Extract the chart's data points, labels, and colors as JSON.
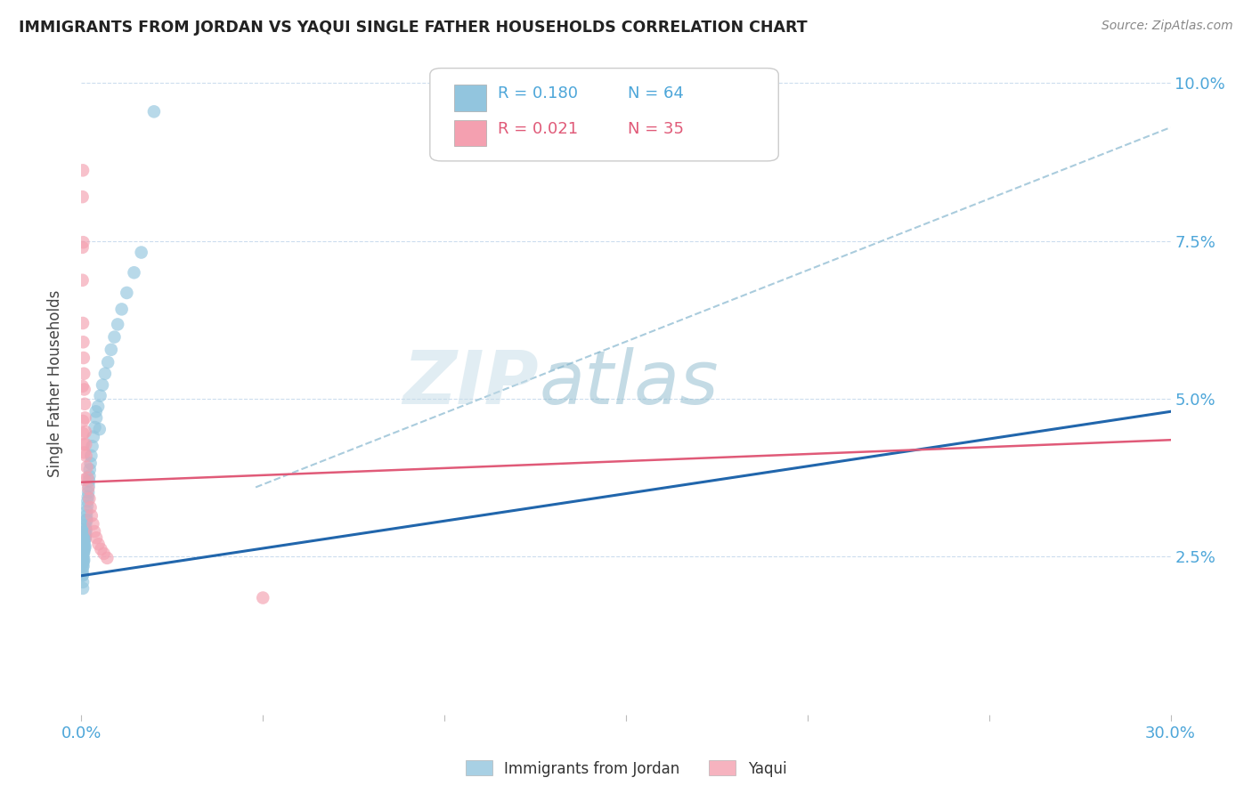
{
  "title": "IMMIGRANTS FROM JORDAN VS YAQUI SINGLE FATHER HOUSEHOLDS CORRELATION CHART",
  "source": "Source: ZipAtlas.com",
  "ylabel": "Single Father Households",
  "xlim": [
    0.0,
    0.3
  ],
  "ylim": [
    0.0,
    0.105
  ],
  "color_blue": "#92c5de",
  "color_pink": "#f4a0b0",
  "line_color_blue": "#2166ac",
  "line_color_pink": "#e05a78",
  "line_color_dashed": "#aaccdd",
  "background_color": "#ffffff",
  "watermark_zip": "ZIP",
  "watermark_atlas": "atlas",
  "jordan_x": [
    0.0003,
    0.0003,
    0.0003,
    0.0003,
    0.0003,
    0.0004,
    0.0004,
    0.0004,
    0.0004,
    0.0004,
    0.0005,
    0.0005,
    0.0005,
    0.0006,
    0.0006,
    0.0006,
    0.0007,
    0.0007,
    0.0007,
    0.0008,
    0.0008,
    0.0009,
    0.0009,
    0.001,
    0.001,
    0.001,
    0.0011,
    0.0011,
    0.0012,
    0.0012,
    0.0013,
    0.0013,
    0.0014,
    0.0015,
    0.0015,
    0.0016,
    0.0017,
    0.0018,
    0.0019,
    0.002,
    0.0021,
    0.0022,
    0.0023,
    0.0025,
    0.0027,
    0.003,
    0.0033,
    0.0037,
    0.0041,
    0.0046,
    0.0052,
    0.0058,
    0.0065,
    0.0073,
    0.0082,
    0.0091,
    0.01,
    0.0111,
    0.0125,
    0.0145,
    0.0165,
    0.02,
    0.004,
    0.005
  ],
  "jordan_y": [
    0.027,
    0.0255,
    0.024,
    0.0228,
    0.022,
    0.0245,
    0.0235,
    0.0222,
    0.021,
    0.02,
    0.026,
    0.0248,
    0.0235,
    0.0268,
    0.0255,
    0.0242,
    0.0272,
    0.0258,
    0.0245,
    0.0278,
    0.0262,
    0.0282,
    0.0268,
    0.029,
    0.0278,
    0.0265,
    0.0295,
    0.028,
    0.03,
    0.0285,
    0.0308,
    0.0292,
    0.0315,
    0.0322,
    0.0308,
    0.033,
    0.0338,
    0.0345,
    0.0352,
    0.0362,
    0.037,
    0.0378,
    0.0388,
    0.0398,
    0.041,
    0.0425,
    0.044,
    0.0455,
    0.047,
    0.0488,
    0.0505,
    0.0522,
    0.054,
    0.0558,
    0.0578,
    0.0598,
    0.0618,
    0.0642,
    0.0668,
    0.07,
    0.0732,
    0.0955,
    0.048,
    0.0452
  ],
  "yaqui_x": [
    0.0003,
    0.0003,
    0.0003,
    0.0004,
    0.0004,
    0.0005,
    0.0005,
    0.0006,
    0.0006,
    0.0007,
    0.0008,
    0.0008,
    0.0009,
    0.001,
    0.0011,
    0.0012,
    0.0013,
    0.0015,
    0.0017,
    0.0019,
    0.0022,
    0.0025,
    0.0028,
    0.0032,
    0.0036,
    0.0041,
    0.0047,
    0.0054,
    0.0062,
    0.0071,
    0.0003,
    0.0004,
    0.0005,
    0.0008,
    0.05
  ],
  "yaqui_y": [
    0.074,
    0.0688,
    0.052,
    0.062,
    0.0465,
    0.059,
    0.0445,
    0.0565,
    0.0428,
    0.054,
    0.0515,
    0.0415,
    0.0492,
    0.047,
    0.0448,
    0.0428,
    0.041,
    0.0392,
    0.0375,
    0.0358,
    0.0342,
    0.0328,
    0.0315,
    0.0302,
    0.029,
    0.028,
    0.027,
    0.0262,
    0.0255,
    0.0248,
    0.082,
    0.0862,
    0.0748,
    0.0372,
    0.0185
  ],
  "blue_line_x": [
    0.0,
    0.3
  ],
  "blue_line_y": [
    0.022,
    0.048
  ],
  "pink_line_x": [
    0.0,
    0.3
  ],
  "pink_line_y": [
    0.0368,
    0.0435
  ],
  "dash_line_x": [
    0.048,
    0.3
  ],
  "dash_line_y": [
    0.036,
    0.093
  ]
}
